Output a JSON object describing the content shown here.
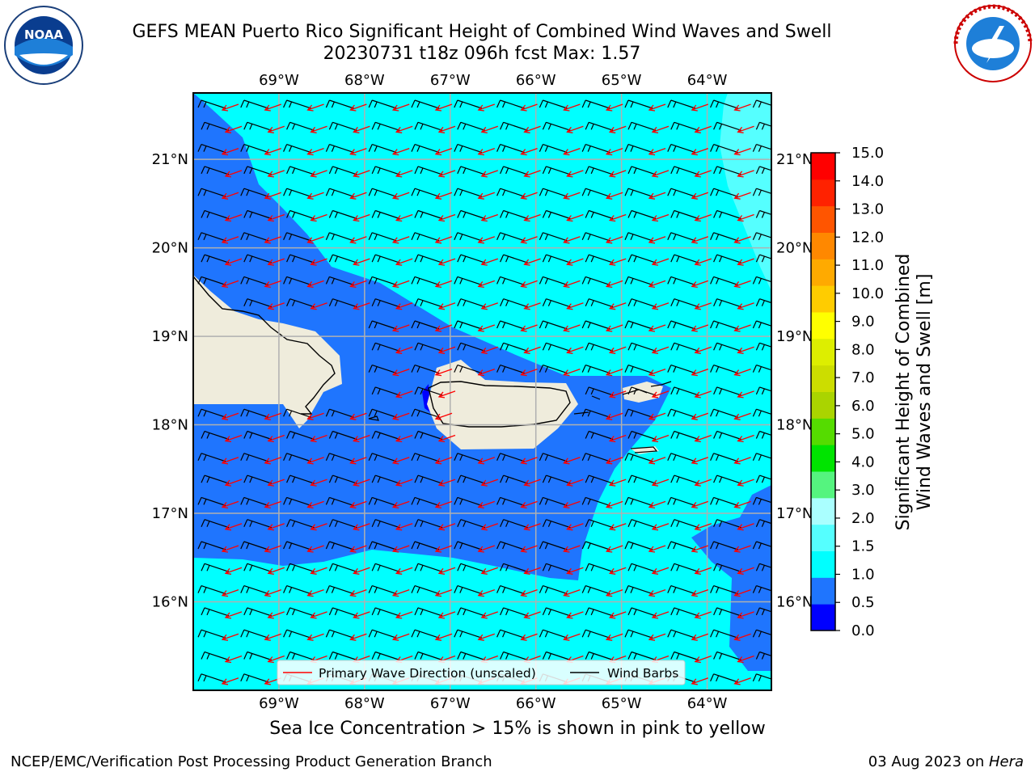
{
  "header": {
    "title_line1": "GEFS MEAN Puerto Rico Significant Height of Combined Wind Waves and Swell",
    "title_line2": "20230731 t18z 096h fcst   Max: 1.57"
  },
  "logos": {
    "left": {
      "icon": "noaa-logo",
      "text": "NOAA"
    },
    "right": {
      "icon": "national-weather-service-logo",
      "text": "NATIONAL WEATHER SERVICE"
    }
  },
  "map": {
    "lon_labels": [
      "69°W",
      "68°W",
      "67°W",
      "66°W",
      "65°W",
      "64°W"
    ],
    "lat_labels": [
      "21°N",
      "20°N",
      "19°N",
      "18°N",
      "17°N",
      "16°N"
    ],
    "lon_range": [
      -70.0,
      -63.25
    ],
    "lat_range": [
      15.0,
      21.75
    ],
    "colors": {
      "land": "#efecdc",
      "wave_0_5_1_0": "#1f75fe",
      "wave_1_0_1_5": "#00ffff",
      "wave_1_5_2_0": "#55ffff",
      "wave_0_0_0_5": "#0000ff",
      "barb": "#000000",
      "arrow": "#ff0000"
    }
  },
  "legend": {
    "wave_direction_label": "Primary Wave Direction (unscaled)",
    "wind_barbs_label": "Wind Barbs"
  },
  "colorbar": {
    "title": "Significant Height of Combined Wind Waves and Swell [m]",
    "title_line1": "Significant Height of Combined",
    "title_line2": "Wind Waves and Swell [m]",
    "tick_labels": [
      "0.0",
      "0.5",
      "1.0",
      "1.5",
      "2.0",
      "3.0",
      "4.0",
      "5.0",
      "6.0",
      "7.0",
      "8.0",
      "9.0",
      "10.0",
      "11.0",
      "12.0",
      "13.0",
      "14.0",
      "15.0"
    ],
    "bin_colors": [
      "#0000ff",
      "#1f75fe",
      "#00ffff",
      "#55ffff",
      "#aaffff",
      "#55f47f",
      "#00e400",
      "#55dc00",
      "#aad400",
      "#ccdd00",
      "#ddee00",
      "#ffff00",
      "#ffcc00",
      "#ffaa00",
      "#ff8800",
      "#ff5500",
      "#ff2200",
      "#ff0000"
    ]
  },
  "footer": {
    "note": "Sea Ice Concentration > 15% is shown in pink to yellow",
    "left": "NCEP/EMC/Verification Post Processing Product Generation Branch",
    "right_prefix": "03 Aug 2023 on ",
    "right_host": "Hera"
  }
}
